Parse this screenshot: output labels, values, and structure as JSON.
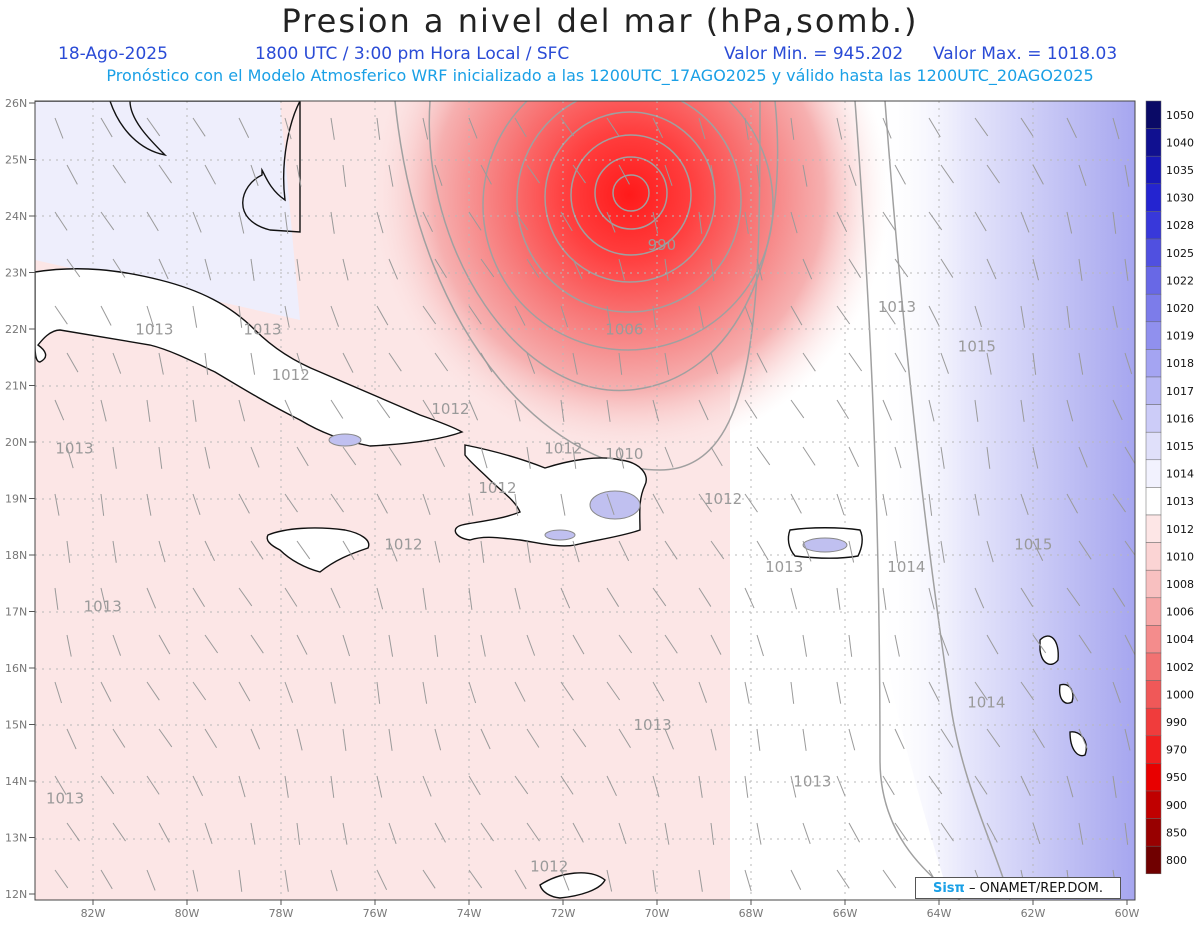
{
  "header": {
    "title": "Presion a nivel del mar (hPa,somb.)",
    "date": "18-Ago-2025",
    "time": "1800 UTC / 3:00 pm Hora Local / SFC",
    "min": "Valor Min. = 945.202",
    "max": "Valor Max. = 1018.03",
    "forecast": "Pronóstico con el Modelo Atmosferico WRF inicializado a las 1200UTC_17AGO2025 y válido hasta las  1200UTC_20AGO2025"
  },
  "credit": {
    "logo": "Sisπ",
    "text": "– ONAMET/REP.DOM."
  },
  "colors": {
    "low": "#ff2a2a",
    "high": "#3a3ac8",
    "neutral": "#fdeaea",
    "land": "#ffffff"
  },
  "axes": {
    "lat_labels": [
      "26N",
      "25N",
      "24N",
      "23N",
      "22N",
      "21N",
      "20N",
      "19N",
      "18N",
      "17N",
      "16N",
      "15N",
      "14N",
      "13N",
      "12N"
    ],
    "lon_labels": [
      "82W",
      "80W",
      "78W",
      "76W",
      "74W",
      "72W",
      "70W",
      "68W",
      "66W",
      "64W",
      "62W",
      "60W"
    ]
  },
  "contour_labels": [
    {
      "text": "990",
      "lon": -70.2,
      "lat": 23.4
    },
    {
      "text": "1006",
      "lon": -71.1,
      "lat": 21.9
    },
    {
      "text": "1013",
      "lon": -65.3,
      "lat": 22.3
    },
    {
      "text": "1013",
      "lon": -81.1,
      "lat": 21.9
    },
    {
      "text": "1013",
      "lon": -78.8,
      "lat": 21.9
    },
    {
      "text": "1012",
      "lon": -78.2,
      "lat": 21.1
    },
    {
      "text": "1012",
      "lon": -74.8,
      "lat": 20.5
    },
    {
      "text": "1015",
      "lon": -63.6,
      "lat": 21.6
    },
    {
      "text": "1013",
      "lon": -82.8,
      "lat": 19.8
    },
    {
      "text": "1012",
      "lon": -72.4,
      "lat": 19.8
    },
    {
      "text": "1010",
      "lon": -71.1,
      "lat": 19.7
    },
    {
      "text": "1012",
      "lon": -73.8,
      "lat": 19.1
    },
    {
      "text": "1012",
      "lon": -69.0,
      "lat": 18.9
    },
    {
      "text": "1012",
      "lon": -75.8,
      "lat": 18.1
    },
    {
      "text": "1013",
      "lon": -67.7,
      "lat": 17.7
    },
    {
      "text": "1014",
      "lon": -65.1,
      "lat": 17.7
    },
    {
      "text": "1015",
      "lon": -62.4,
      "lat": 18.1
    },
    {
      "text": "1013",
      "lon": -82.2,
      "lat": 17.0
    },
    {
      "text": "1014",
      "lon": -63.4,
      "lat": 15.3
    },
    {
      "text": "1013",
      "lon": -70.5,
      "lat": 14.9
    },
    {
      "text": "1013",
      "lon": -83.0,
      "lat": 13.6
    },
    {
      "text": "1013",
      "lon": -67.1,
      "lat": 13.9
    },
    {
      "text": "1012",
      "lon": -72.7,
      "lat": 12.4
    }
  ],
  "legend": {
    "levels": [
      "1050",
      "1040",
      "1035",
      "1030",
      "1028",
      "1025",
      "1022",
      "1020",
      "1019",
      "1018",
      "1017",
      "1016",
      "1015",
      "1014",
      "1013",
      "1012",
      "1010",
      "1008",
      "1006",
      "1004",
      "1002",
      "1000",
      "990",
      "970",
      "950",
      "900",
      "850",
      "800"
    ],
    "colors": [
      "#0a0a66",
      "#101090",
      "#1818b8",
      "#2424d0",
      "#3838da",
      "#5050e0",
      "#6868e6",
      "#7c7cea",
      "#9090ee",
      "#a4a4f2",
      "#b8b8f4",
      "#ccccf8",
      "#e0e0fa",
      "#f2f2fe",
      "#ffffff",
      "#fde6e6",
      "#fbd4d4",
      "#f8c0c0",
      "#f6a6a6",
      "#f48c8c",
      "#f27272",
      "#f05858",
      "#f03c3c",
      "#f01e1e",
      "#e80000",
      "#c00000",
      "#980000",
      "#700000"
    ]
  }
}
